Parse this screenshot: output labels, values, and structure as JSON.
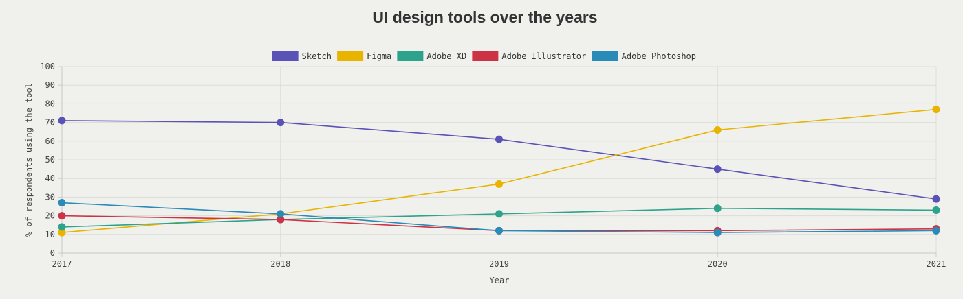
{
  "chart_data": {
    "type": "line",
    "title": "UI design tools over the years",
    "xlabel": "Year",
    "ylabel": "% of respondents using the tool",
    "x": [
      "2017",
      "2018",
      "2019",
      "2020",
      "2021"
    ],
    "ylim": [
      0,
      100
    ],
    "yticks": [
      "0",
      "10",
      "20",
      "30",
      "40",
      "50",
      "60",
      "70",
      "80",
      "90",
      "100"
    ],
    "grid": true,
    "legend_position": "top",
    "series": [
      {
        "name": "Sketch",
        "color": "#5a52b6",
        "values": [
          71,
          70,
          61,
          45,
          29
        ]
      },
      {
        "name": "Figma",
        "color": "#e8b400",
        "values": [
          11,
          21,
          37,
          66,
          77
        ]
      },
      {
        "name": "Adobe XD",
        "color": "#2ea38c",
        "values": [
          14,
          18,
          21,
          24,
          23
        ]
      },
      {
        "name": "Adobe Illustrator",
        "color": "#cc3344",
        "values": [
          20,
          18,
          12,
          12,
          13
        ]
      },
      {
        "name": "Adobe Photoshop",
        "color": "#2a8ab8",
        "values": [
          27,
          21,
          12,
          11,
          12
        ]
      }
    ]
  }
}
